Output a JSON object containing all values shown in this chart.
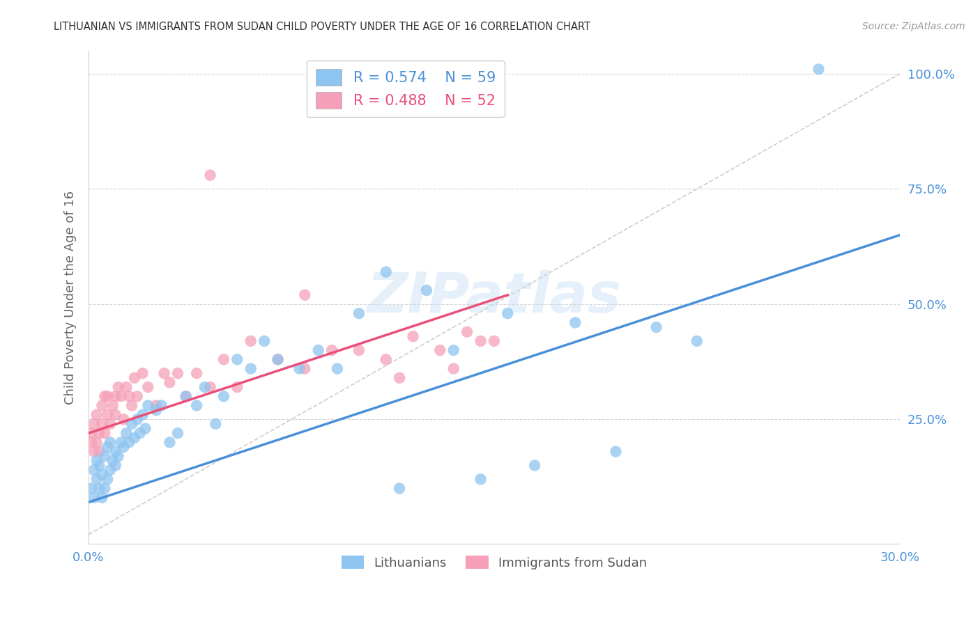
{
  "title": "LITHUANIAN VS IMMIGRANTS FROM SUDAN CHILD POVERTY UNDER THE AGE OF 16 CORRELATION CHART",
  "source": "Source: ZipAtlas.com",
  "ylabel": "Child Poverty Under the Age of 16",
  "xlim": [
    0.0,
    0.3
  ],
  "ylim": [
    -0.02,
    1.05
  ],
  "yticks": [
    0.25,
    0.5,
    0.75,
    1.0
  ],
  "ytick_labels": [
    "25.0%",
    "50.0%",
    "75.0%",
    "100.0%"
  ],
  "xticks": [
    0.0,
    0.05,
    0.1,
    0.15,
    0.2,
    0.25,
    0.3
  ],
  "xtick_labels": [
    "0.0%",
    "",
    "",
    "",
    "",
    "",
    "30.0%"
  ],
  "blue_color": "#8ec4f0",
  "pink_color": "#f5a0b8",
  "blue_line_color": "#4a90d9",
  "pink_line_color": "#e8507a",
  "legend_R_blue": "R = 0.574",
  "legend_N_blue": "N = 59",
  "legend_R_pink": "R = 0.488",
  "legend_N_pink": "N = 52",
  "label_blue": "Lithuanians",
  "label_pink": "Immigrants from Sudan",
  "watermark": "ZIPatlas",
  "blue_scatter_x": [
    0.001,
    0.002,
    0.002,
    0.003,
    0.003,
    0.004,
    0.004,
    0.005,
    0.005,
    0.006,
    0.006,
    0.007,
    0.007,
    0.008,
    0.008,
    0.009,
    0.01,
    0.01,
    0.011,
    0.012,
    0.013,
    0.014,
    0.015,
    0.016,
    0.017,
    0.018,
    0.019,
    0.02,
    0.021,
    0.022,
    0.025,
    0.027,
    0.03,
    0.033,
    0.036,
    0.04,
    0.043,
    0.047,
    0.05,
    0.055,
    0.06,
    0.065,
    0.07,
    0.078,
    0.085,
    0.092,
    0.1,
    0.11,
    0.115,
    0.125,
    0.135,
    0.145,
    0.155,
    0.165,
    0.18,
    0.195,
    0.21,
    0.225,
    0.27
  ],
  "blue_scatter_y": [
    0.1,
    0.08,
    0.14,
    0.12,
    0.16,
    0.1,
    0.15,
    0.08,
    0.13,
    0.1,
    0.17,
    0.12,
    0.19,
    0.14,
    0.2,
    0.16,
    0.15,
    0.18,
    0.17,
    0.2,
    0.19,
    0.22,
    0.2,
    0.24,
    0.21,
    0.25,
    0.22,
    0.26,
    0.23,
    0.28,
    0.27,
    0.28,
    0.2,
    0.22,
    0.3,
    0.28,
    0.32,
    0.24,
    0.3,
    0.38,
    0.36,
    0.42,
    0.38,
    0.36,
    0.4,
    0.36,
    0.48,
    0.57,
    0.1,
    0.53,
    0.4,
    0.12,
    0.48,
    0.15,
    0.46,
    0.18,
    0.45,
    0.42,
    1.01
  ],
  "pink_scatter_x": [
    0.001,
    0.001,
    0.002,
    0.002,
    0.003,
    0.003,
    0.004,
    0.004,
    0.005,
    0.005,
    0.006,
    0.006,
    0.007,
    0.007,
    0.008,
    0.009,
    0.01,
    0.01,
    0.011,
    0.012,
    0.013,
    0.014,
    0.015,
    0.016,
    0.017,
    0.018,
    0.02,
    0.022,
    0.025,
    0.028,
    0.03,
    0.033,
    0.036,
    0.04,
    0.045,
    0.05,
    0.055,
    0.06,
    0.07,
    0.08,
    0.09,
    0.1,
    0.11,
    0.115,
    0.12,
    0.13,
    0.135,
    0.14,
    0.145,
    0.15,
    0.045,
    0.08
  ],
  "pink_scatter_y": [
    0.2,
    0.22,
    0.18,
    0.24,
    0.2,
    0.26,
    0.22,
    0.18,
    0.24,
    0.28,
    0.3,
    0.22,
    0.26,
    0.3,
    0.24,
    0.28,
    0.3,
    0.26,
    0.32,
    0.3,
    0.25,
    0.32,
    0.3,
    0.28,
    0.34,
    0.3,
    0.35,
    0.32,
    0.28,
    0.35,
    0.33,
    0.35,
    0.3,
    0.35,
    0.32,
    0.38,
    0.32,
    0.42,
    0.38,
    0.36,
    0.4,
    0.4,
    0.38,
    0.34,
    0.43,
    0.4,
    0.36,
    0.44,
    0.42,
    0.42,
    0.78,
    0.52
  ],
  "blue_trend_x": [
    0.0,
    0.3
  ],
  "blue_trend_y": [
    0.07,
    0.65
  ],
  "pink_trend_x": [
    0.0,
    0.155
  ],
  "pink_trend_y": [
    0.22,
    0.52
  ],
  "ref_line_x": [
    0.0,
    0.3
  ],
  "ref_line_y": [
    0.0,
    1.0
  ],
  "background_color": "#ffffff",
  "title_color": "#333333",
  "axis_label_color": "#4a90d9",
  "ylabel_color": "#666666",
  "grid_color": "#d0d0d0"
}
